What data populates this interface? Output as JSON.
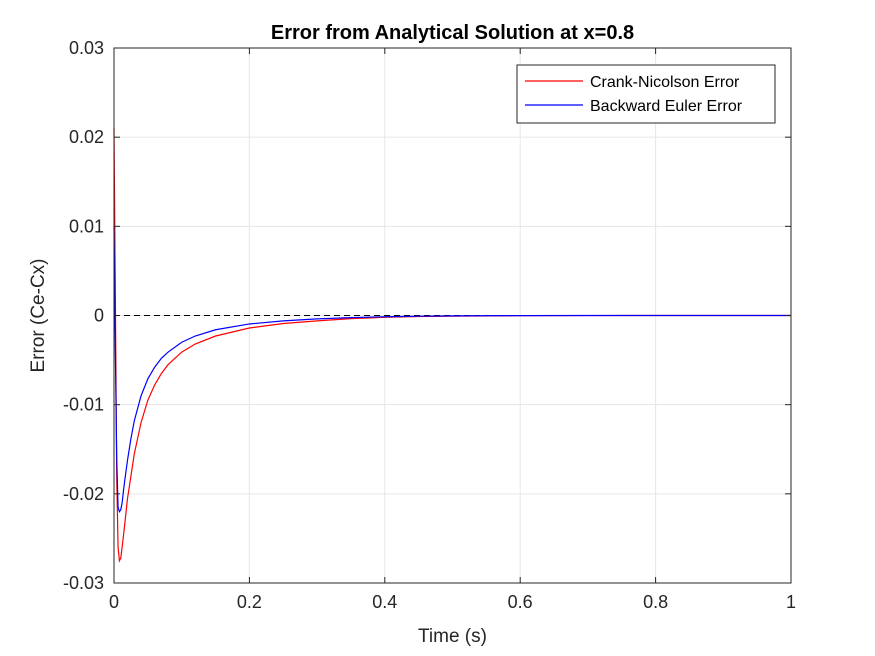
{
  "chart_data": {
    "type": "line",
    "title": "Error from Analytical Solution at x=0.8",
    "xlabel": "Time (s)",
    "ylabel": "Error (Ce-Cx)",
    "xlim": [
      0,
      1
    ],
    "ylim": [
      -0.03,
      0.03
    ],
    "xticks": [
      0,
      0.2,
      0.4,
      0.6,
      0.8,
      1
    ],
    "xtick_labels": [
      "0",
      "0.2",
      "0.4",
      "0.6",
      "0.8",
      "1"
    ],
    "yticks": [
      -0.03,
      -0.02,
      -0.01,
      0,
      0.01,
      0.02,
      0.03
    ],
    "ytick_labels": [
      "-0.03",
      "-0.02",
      "-0.01",
      "0",
      "0.01",
      "0.02",
      "0.03"
    ],
    "grid": true,
    "legend_position": "top-right",
    "reference_line": {
      "y": 0,
      "style": "dashed",
      "color": "#000000"
    },
    "series": [
      {
        "name": "Crank-Nicolson Error",
        "color": "#ff0000",
        "x": [
          0,
          0.002,
          0.004,
          0.006,
          0.008,
          0.01,
          0.012,
          0.015,
          0.02,
          0.025,
          0.03,
          0.04,
          0.05,
          0.06,
          0.07,
          0.08,
          0.1,
          0.12,
          0.15,
          0.2,
          0.25,
          0.3,
          0.35,
          0.4,
          0.45,
          0.5,
          0.6,
          0.7,
          0.8,
          1.0
        ],
        "y": [
          0.021,
          0.002,
          -0.018,
          -0.026,
          -0.0275,
          -0.0272,
          -0.026,
          -0.024,
          -0.0205,
          -0.018,
          -0.0155,
          -0.012,
          -0.0095,
          -0.0078,
          -0.0065,
          -0.0055,
          -0.0041,
          -0.0032,
          -0.0023,
          -0.0014,
          -0.0009,
          -0.0006,
          -0.00035,
          -0.0002,
          -0.00012,
          -7e-05,
          -2e-05,
          -5e-06,
          0,
          0
        ]
      },
      {
        "name": "Backward Euler Error",
        "color": "#0000ff",
        "x": [
          0,
          0.001,
          0.002,
          0.004,
          0.006,
          0.008,
          0.01,
          0.012,
          0.015,
          0.02,
          0.025,
          0.03,
          0.04,
          0.05,
          0.06,
          0.07,
          0.08,
          0.1,
          0.12,
          0.15,
          0.2,
          0.25,
          0.3,
          0.35,
          0.4,
          0.45,
          0.5,
          0.6,
          0.7,
          0.8,
          1.0
        ],
        "y": [
          0.01,
          0.004,
          -0.004,
          -0.016,
          -0.0215,
          -0.022,
          -0.0218,
          -0.021,
          -0.019,
          -0.0162,
          -0.0138,
          -0.0118,
          -0.009,
          -0.0071,
          -0.0058,
          -0.0048,
          -0.0041,
          -0.003,
          -0.0023,
          -0.0016,
          -0.00095,
          -0.0006,
          -0.00038,
          -0.00024,
          -0.00014,
          -8e-05,
          -4e-05,
          -1e-05,
          -3e-06,
          0,
          0
        ]
      }
    ]
  }
}
